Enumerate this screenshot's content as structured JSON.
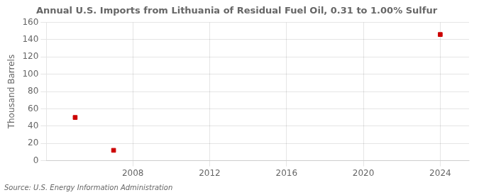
{
  "chart_data": {
    "type": "scatter",
    "title": "Annual U.S. Imports from Lithuania of Residual Fuel Oil, 0.31 to 1.00% Sulfur",
    "ylabel": "Thousand Barrels",
    "source": "Source: U.S. Energy Information Administration",
    "x": [
      2005,
      2007,
      2024
    ],
    "values": [
      50,
      12,
      146
    ],
    "color": "#cc0000",
    "marker": "square",
    "xlim": [
      2003.5,
      2025.5
    ],
    "xticks": [
      2008,
      2012,
      2016,
      2020,
      2024
    ],
    "ylim": [
      0,
      160
    ],
    "yticks": [
      0,
      20,
      40,
      60,
      80,
      100,
      120,
      140,
      160
    ],
    "grid": true
  }
}
